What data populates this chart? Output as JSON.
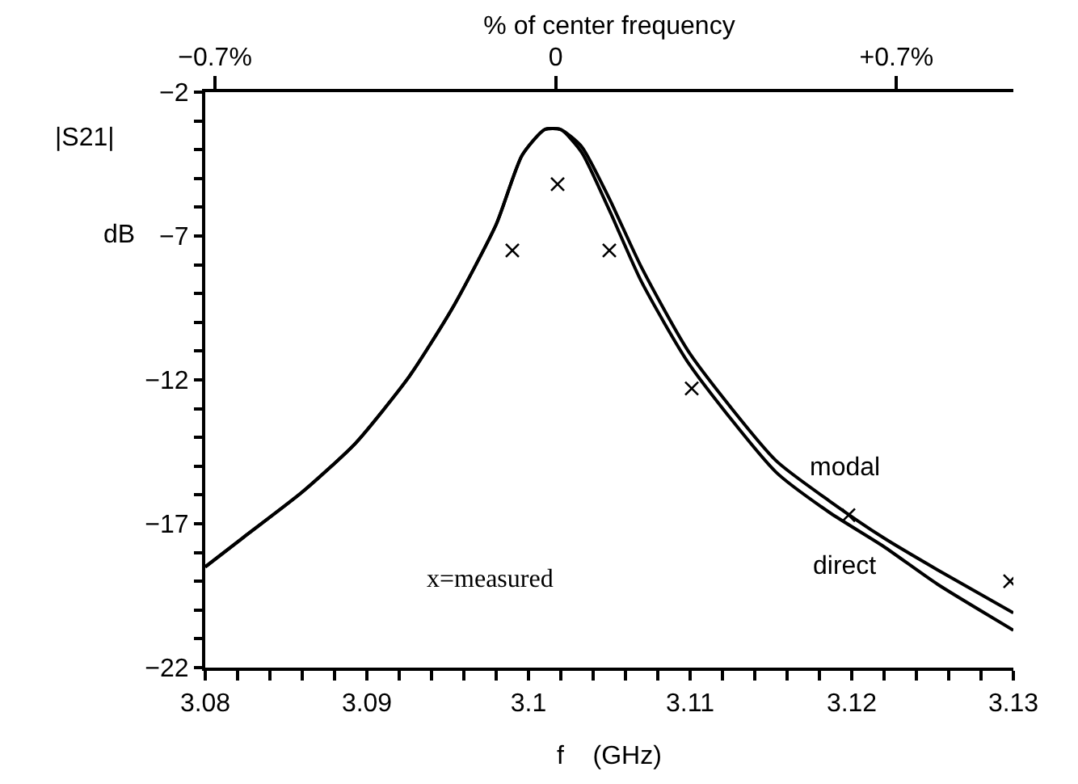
{
  "chart_data": {
    "type": "line",
    "xlabel": "f    (GHz)",
    "ylabel": "|S21|\ndB",
    "x2label": "% of center frequency",
    "xlim": [
      3.08,
      3.13
    ],
    "ylim": [
      -22,
      -2
    ],
    "x2lim": [
      -0.72,
      0.94
    ],
    "xticks": [
      3.08,
      {
        "value": 3.082,
        "label": null
      },
      {
        "value": 3.084,
        "label": null
      },
      {
        "value": 3.086,
        "label": null
      },
      {
        "value": 3.088,
        "label": null
      },
      3.09,
      {
        "value": 3.092,
        "label": null
      },
      {
        "value": 3.094,
        "label": null
      },
      {
        "value": 3.096,
        "label": null
      },
      {
        "value": 3.098,
        "label": null
      },
      3.1,
      {
        "value": 3.102,
        "label": null
      },
      {
        "value": 3.104,
        "label": null
      },
      {
        "value": 3.106,
        "label": null
      },
      {
        "value": 3.108,
        "label": null
      },
      3.11,
      {
        "value": 3.112,
        "label": null
      },
      {
        "value": 3.114,
        "label": null
      },
      {
        "value": 3.116,
        "label": null
      },
      {
        "value": 3.118,
        "label": null
      },
      3.12,
      {
        "value": 3.122,
        "label": null
      },
      {
        "value": 3.124,
        "label": null
      },
      {
        "value": 3.126,
        "label": null
      },
      {
        "value": 3.128,
        "label": null
      },
      3.13
    ],
    "yticks": [
      {
        "value": -2,
        "label": "−2"
      },
      {
        "value": -3,
        "label": null
      },
      {
        "value": -4,
        "label": null
      },
      {
        "value": -5,
        "label": null
      },
      {
        "value": -6,
        "label": null
      },
      {
        "value": -7,
        "label": "−7"
      },
      {
        "value": -8,
        "label": null
      },
      {
        "value": -9,
        "label": null
      },
      {
        "value": -10,
        "label": null
      },
      {
        "value": -11,
        "label": null
      },
      {
        "value": -12,
        "label": "−12"
      },
      {
        "value": -13,
        "label": null
      },
      {
        "value": -14,
        "label": null
      },
      {
        "value": -15,
        "label": null
      },
      {
        "value": -16,
        "label": null
      },
      {
        "value": -17,
        "label": "−17"
      },
      {
        "value": -18,
        "label": null
      },
      {
        "value": -19,
        "label": null
      },
      {
        "value": -20,
        "label": null
      },
      {
        "value": -21,
        "label": null
      },
      {
        "value": -22,
        "label": "−22"
      }
    ],
    "x2ticks": [
      {
        "value": -0.7,
        "label": "−0.7%"
      },
      0,
      {
        "value": 0.7,
        "label": "+0.7%"
      }
    ],
    "legend": false,
    "line_style": "solid",
    "series": [
      {
        "name": "modal",
        "color": "#000000",
        "x": [
          3.08,
          3.0823,
          3.086,
          3.0893,
          3.0926,
          3.0953,
          3.098,
          3.0996,
          3.101,
          3.102,
          3.1033,
          3.105,
          3.107,
          3.11,
          3.1153,
          3.1186,
          3.122,
          3.1253,
          3.13
        ],
        "values": [
          -18.5,
          -17.5,
          -15.9,
          -14.2,
          -11.9,
          -9.5,
          -6.6,
          -4.2,
          -3.3,
          -3.3,
          -3.9,
          -5.7,
          -8.1,
          -11.1,
          -14.8,
          -16.2,
          -17.5,
          -18.6,
          -20.1
        ]
      },
      {
        "name": "direct",
        "color": "#000000",
        "x": [
          3.08,
          3.0823,
          3.086,
          3.0893,
          3.0926,
          3.0953,
          3.098,
          3.0996,
          3.101,
          3.102,
          3.1033,
          3.105,
          3.107,
          3.11,
          3.1153,
          3.1186,
          3.122,
          3.1253,
          3.13
        ],
        "values": [
          -18.5,
          -17.5,
          -15.9,
          -14.2,
          -11.9,
          -9.5,
          -6.6,
          -4.2,
          -3.3,
          -3.3,
          -4.1,
          -6.1,
          -8.6,
          -11.5,
          -15.2,
          -16.6,
          -17.8,
          -19.1,
          -20.7
        ]
      },
      {
        "type": "scatter",
        "marker": "cross",
        "color": "#000000",
        "x": [
          3.099,
          3.1018,
          3.105,
          3.1101,
          3.1198,
          3.1298
        ],
        "values": [
          -7.5,
          -5.2,
          -7.5,
          -12.3,
          -16.7,
          -19.0
        ]
      }
    ],
    "annotations": [
      "x=measured"
    ]
  }
}
